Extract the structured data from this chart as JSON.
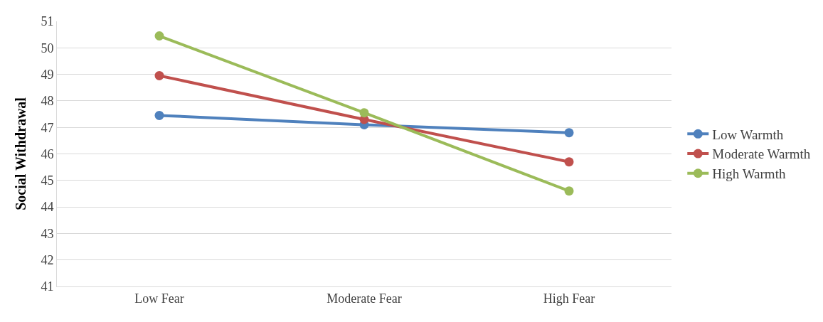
{
  "chart_data": {
    "type": "line",
    "ylabel": "Social Withdrawal",
    "categories": [
      "Low Fear",
      "Moderate Fear",
      "High Fear"
    ],
    "series": [
      {
        "name": "Low Warmth",
        "color": "#4f81bd",
        "values": [
          47.45,
          47.1,
          46.8
        ]
      },
      {
        "name": "Moderate Warmth",
        "color": "#c0504d",
        "values": [
          48.95,
          47.3,
          45.7
        ]
      },
      {
        "name": "High Warmth",
        "color": "#9bbb59",
        "values": [
          50.45,
          47.55,
          44.6
        ]
      }
    ],
    "ylim": [
      41,
      51
    ],
    "yticks": [
      41,
      42,
      43,
      44,
      45,
      46,
      47,
      48,
      49,
      50,
      51
    ],
    "grid": "y",
    "legend": "right",
    "marker": "circle",
    "line_style": "solid"
  }
}
